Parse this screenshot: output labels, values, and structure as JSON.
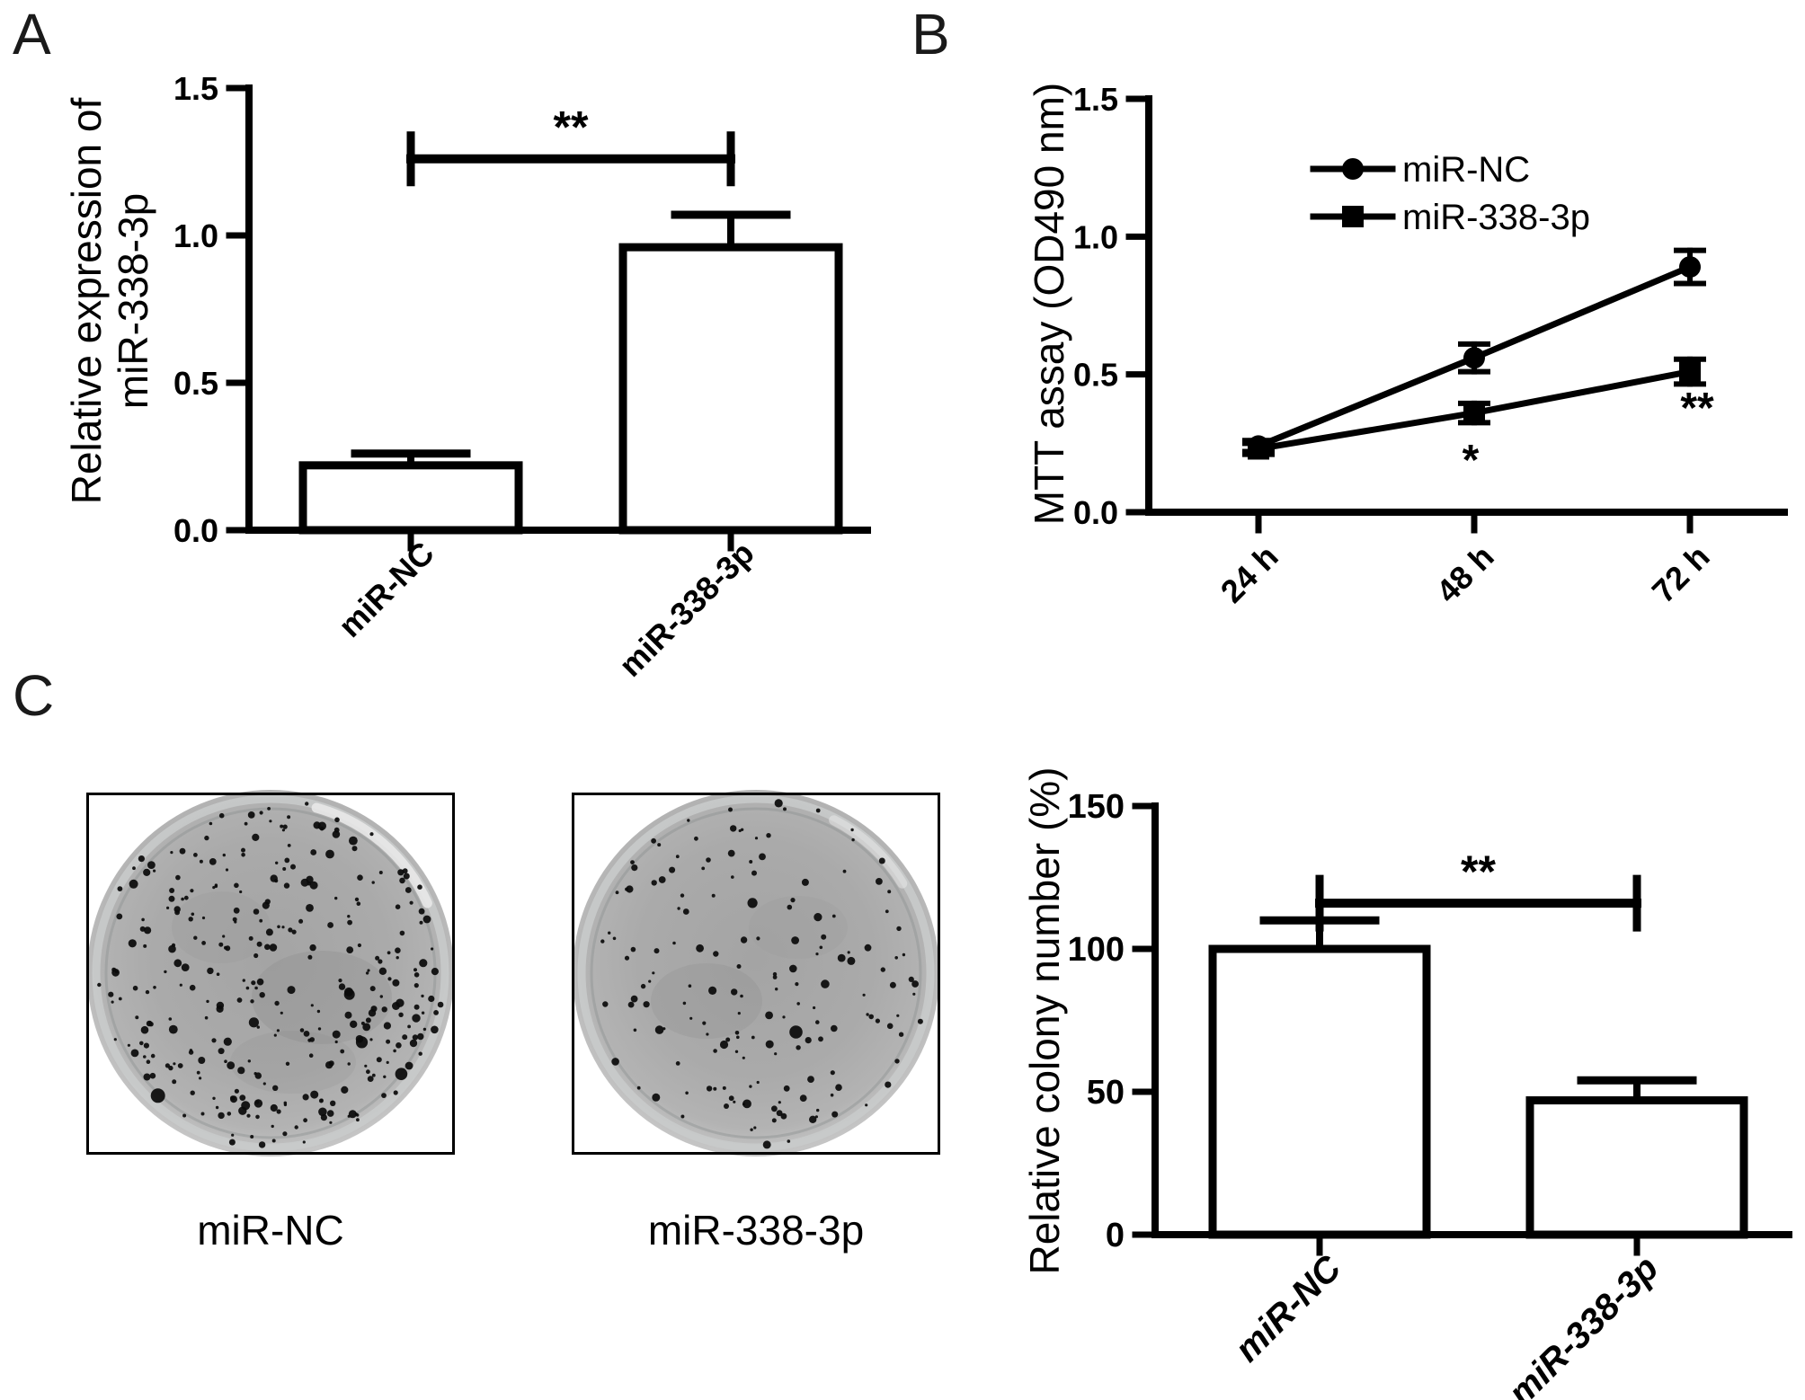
{
  "panels": {
    "a": {
      "letter": "A"
    },
    "b": {
      "letter": "B"
    },
    "c": {
      "letter": "C",
      "plates": [
        {
          "label": "miR-NC",
          "colonies_approx": 330,
          "appearance": "dense black colony dots on gray petri dish"
        },
        {
          "label": "miR-338-3p",
          "colonies_approx": 165,
          "appearance": "sparser black colony dots on gray petri dish"
        }
      ]
    }
  },
  "colors": {
    "foreground": "#000000",
    "background": "#ffffff",
    "dish_gray": "#a9a9a9"
  },
  "chart_data": [
    {
      "panel": "A",
      "type": "bar",
      "title": "",
      "ylabel": "Relative expression of\nmiR-338-3p",
      "categories": [
        "miR-NC",
        "miR-338-3p"
      ],
      "values": [
        0.22,
        0.96
      ],
      "errors": [
        0.04,
        0.11
      ],
      "ylim": [
        0,
        1.5
      ],
      "yticks": [
        0.0,
        0.5,
        1.0,
        1.5
      ],
      "ytick_labels": [
        "0.0",
        "0.5",
        "1.0",
        "1.5"
      ],
      "bar_fill": "#ffffff",
      "grid": false,
      "significance": {
        "label": "**",
        "between": [
          "miR-NC",
          "miR-338-3p"
        ],
        "y_value": 1.26
      }
    },
    {
      "panel": "B",
      "type": "line",
      "title": "",
      "ylabel": "MTT assay  (OD490 nm)",
      "categories": [
        "24 h",
        "48 h",
        "72 h"
      ],
      "series": [
        {
          "name": "miR-NC",
          "marker": "circle",
          "values": [
            0.24,
            0.56,
            0.89
          ],
          "errors": [
            0.02,
            0.05,
            0.06
          ]
        },
        {
          "name": "miR-338-3p",
          "marker": "square",
          "values": [
            0.23,
            0.36,
            0.51
          ],
          "errors": [
            0.02,
            0.035,
            0.045
          ]
        }
      ],
      "ylim": [
        0,
        1.5
      ],
      "yticks": [
        0.0,
        0.5,
        1.0,
        1.5
      ],
      "ytick_labels": [
        "0.0",
        "0.5",
        "1.0",
        "1.5"
      ],
      "grid": false,
      "legend_position": "top-center-inside",
      "annotations": [
        {
          "label": "*",
          "at_category": "48 h",
          "series": "miR-338-3p"
        },
        {
          "label": "**",
          "at_category": "72 h",
          "series": "miR-338-3p"
        }
      ]
    },
    {
      "panel": "C",
      "type": "bar",
      "title": "",
      "ylabel": "Relative colony number  (%)",
      "categories": [
        "miR-NC",
        "miR-338-3p"
      ],
      "values": [
        100,
        47
      ],
      "errors": [
        10,
        7
      ],
      "ylim": [
        0,
        150
      ],
      "yticks": [
        0,
        50,
        100,
        150
      ],
      "ytick_labels": [
        "0",
        "50",
        "100",
        "150"
      ],
      "bar_fill": "#ffffff",
      "grid": false,
      "italic_categories": true,
      "significance": {
        "label": "**",
        "between": [
          "miR-NC",
          "miR-338-3p"
        ],
        "y_value": 116
      }
    }
  ]
}
